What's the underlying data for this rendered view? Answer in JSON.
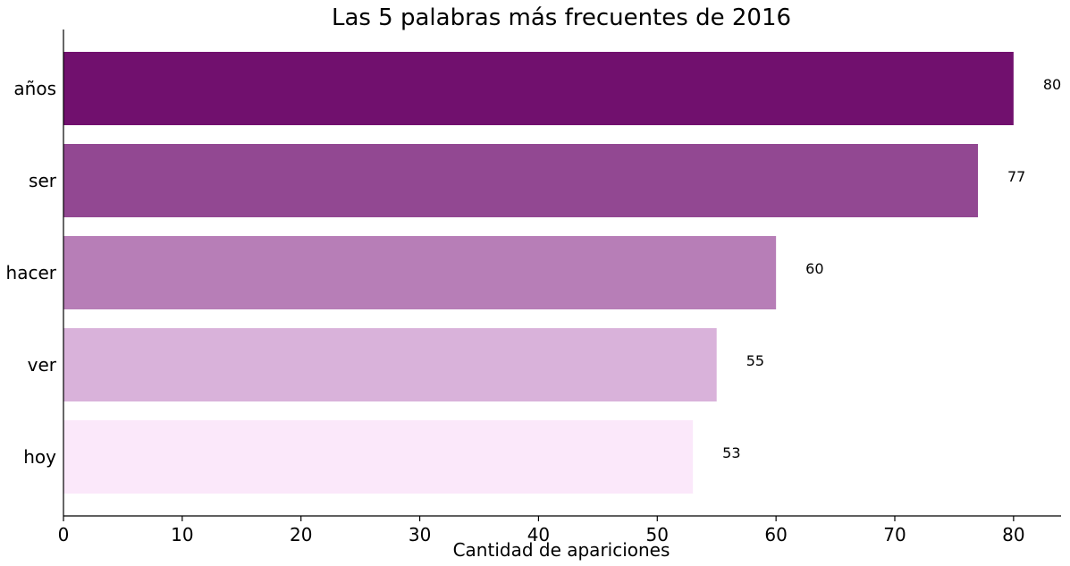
{
  "chart_data": {
    "type": "bar",
    "orientation": "horizontal",
    "title": "Las 5 palabras más frecuentes de 2016",
    "xlabel": "Cantidad de apariciones",
    "ylabel": "",
    "categories": [
      "años",
      "ser",
      "hacer",
      "ver",
      "hoy"
    ],
    "values": [
      80,
      77,
      60,
      55,
      53
    ],
    "bar_colors": [
      "#71106e",
      "#924892",
      "#b77eb7",
      "#d9b2da",
      "#fbe8fa"
    ],
    "xlim": [
      0,
      84
    ],
    "xticks": [
      0,
      10,
      20,
      30,
      40,
      50,
      60,
      70,
      80
    ],
    "grid": false,
    "data_labels": true
  }
}
